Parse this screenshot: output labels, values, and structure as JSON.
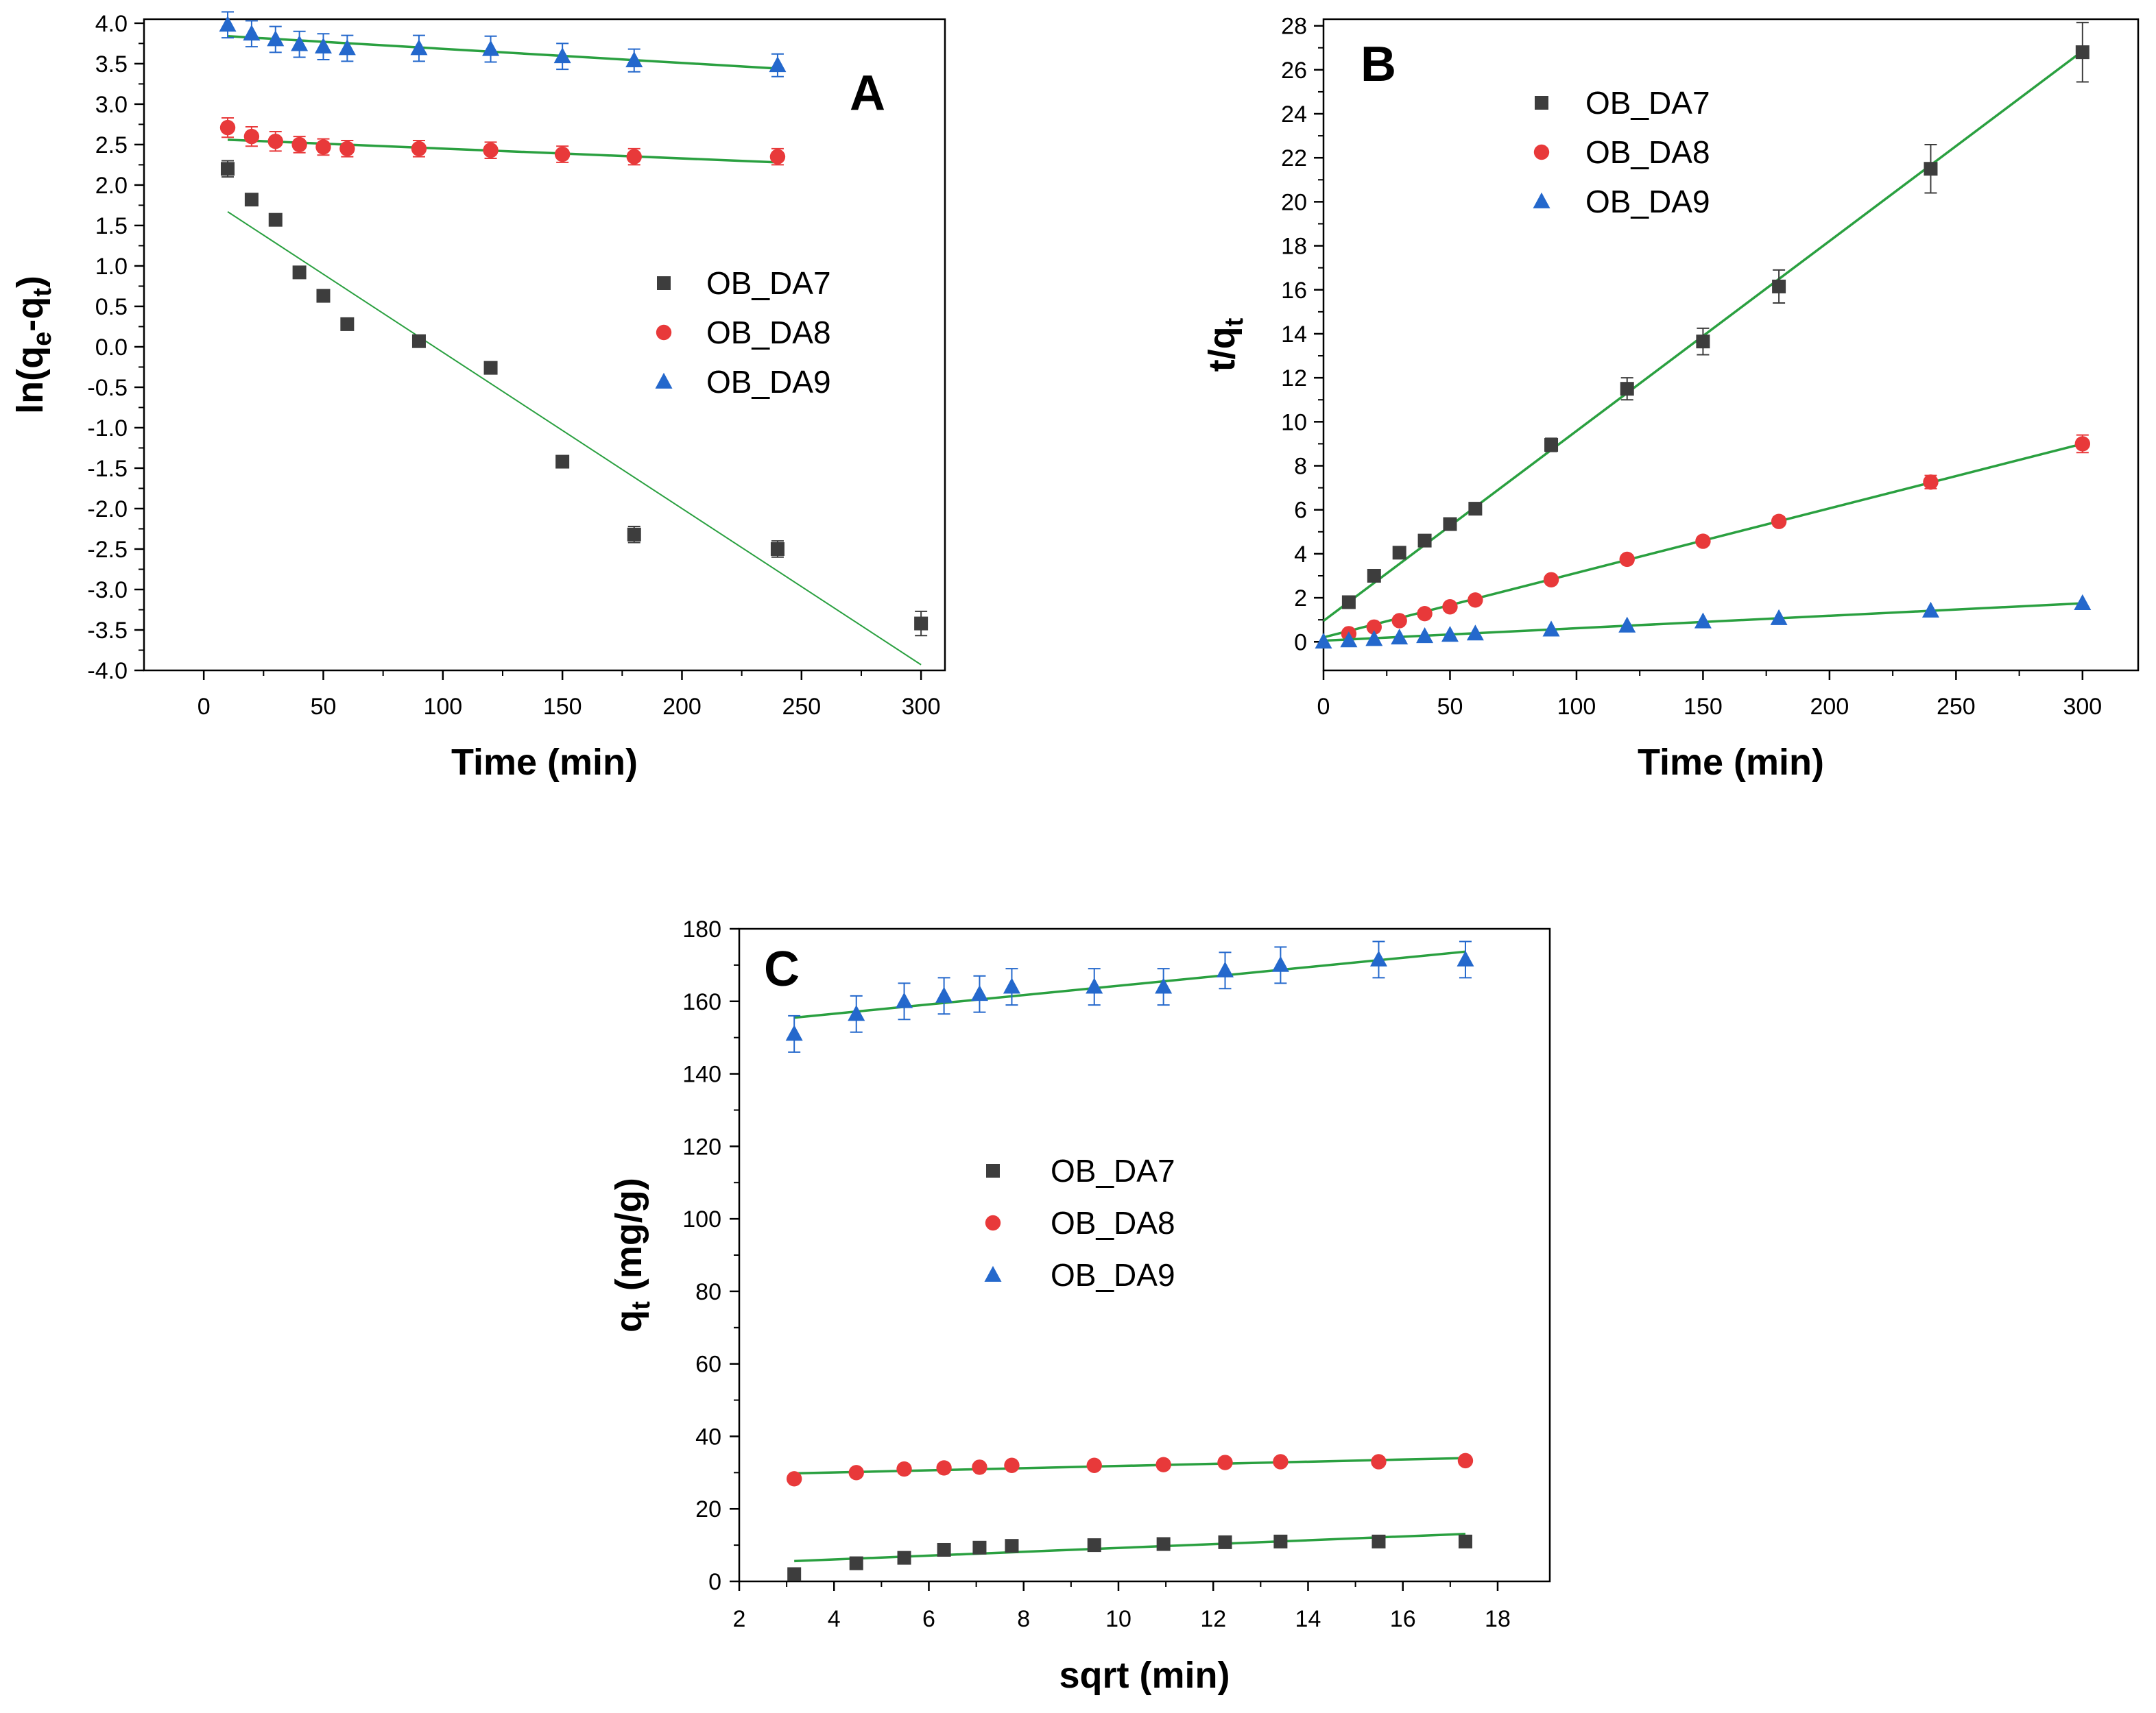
{
  "figure": {
    "colors": {
      "OB_DA7": "#3d3d3d",
      "OB_DA8": "#e8393a",
      "OB_DA9": "#2468cc",
      "fit_line": "#2aa040",
      "axis": "#000000"
    }
  },
  "chart_data": [
    {
      "type": "scatter",
      "panel": "A",
      "title": "A",
      "xlabel": "Time (min)",
      "ylabel": {
        "base": "ln(q",
        "sub1": "e",
        "mid": "-q",
        "sub2": "t",
        "end": ")"
      },
      "xlim": [
        -25,
        310
      ],
      "ylim": [
        -4.0,
        4.05
      ],
      "xticks": [
        0,
        50,
        100,
        150,
        200,
        250,
        300
      ],
      "xtick_labels": [
        "0",
        "50",
        "100",
        "150",
        "200",
        "250",
        "300"
      ],
      "yticks": [
        4.0,
        3.5,
        3.0,
        2.5,
        2.0,
        1.5,
        1.0,
        0.5,
        0.0,
        -0.5,
        -1.0,
        -1.5,
        -2.0,
        -2.5,
        -3.0,
        -3.5,
        -4.0
      ],
      "ytick_labels": [
        "4.0",
        "3.5",
        "3.0",
        "2.5",
        "2.0",
        "1.5",
        "1.0",
        "0.5",
        "0.0",
        "-0.5",
        "-1.0",
        "-1.5",
        "-2.0",
        "-2.5",
        "-3.0",
        "-3.5",
        "-4.0"
      ],
      "legend_position": "center-right",
      "series": [
        {
          "name": "OB_DA7",
          "marker": "square",
          "x": [
            10,
            20,
            30,
            40,
            50,
            60,
            90,
            120,
            150,
            180,
            240,
            300
          ],
          "y": [
            2.2,
            1.82,
            1.57,
            0.92,
            0.63,
            0.28,
            0.07,
            -0.26,
            -1.42,
            -2.32,
            -2.5,
            -3.42
          ],
          "err": [
            0.1,
            0,
            0,
            0,
            0,
            0,
            0,
            0,
            0,
            0.1,
            0.1,
            0.15
          ],
          "fit": {
            "x": [
              10,
              300
            ],
            "y": [
              1.67,
              -3.93
            ]
          }
        },
        {
          "name": "OB_DA8",
          "marker": "circle",
          "x": [
            10,
            20,
            30,
            40,
            50,
            60,
            90,
            120,
            150,
            180,
            240
          ],
          "y": [
            2.71,
            2.6,
            2.54,
            2.5,
            2.47,
            2.45,
            2.45,
            2.43,
            2.38,
            2.35,
            2.35
          ],
          "err": [
            0.12,
            0.12,
            0.12,
            0.1,
            0.1,
            0.1,
            0.1,
            0.1,
            0.1,
            0.1,
            0.1
          ],
          "fit": {
            "x": [
              10,
              240
            ],
            "y": [
              2.56,
              2.28
            ]
          }
        },
        {
          "name": "OB_DA9",
          "marker": "triangle",
          "x": [
            10,
            20,
            30,
            40,
            50,
            60,
            90,
            120,
            150,
            180,
            240
          ],
          "y": [
            3.98,
            3.87,
            3.8,
            3.74,
            3.71,
            3.69,
            3.69,
            3.68,
            3.59,
            3.54,
            3.48
          ],
          "err": [
            0.16,
            0.16,
            0.16,
            0.16,
            0.16,
            0.16,
            0.16,
            0.16,
            0.16,
            0.14,
            0.14
          ],
          "fit": {
            "x": [
              10,
              240
            ],
            "y": [
              3.84,
              3.44
            ]
          }
        }
      ]
    },
    {
      "type": "scatter",
      "panel": "B",
      "title": "B",
      "xlabel": "Time (min)",
      "ylabel": {
        "base": "t/q",
        "sub1": "t",
        "mid": "",
        "sub2": "",
        "end": ""
      },
      "xlim": [
        0,
        322
      ],
      "ylim": [
        -1.3,
        28.3
      ],
      "xticks": [
        0,
        50,
        100,
        150,
        200,
        250,
        300
      ],
      "xtick_labels": [
        "0",
        "50",
        "100",
        "150",
        "200",
        "250",
        "300"
      ],
      "yticks": [
        0,
        2,
        4,
        6,
        8,
        10,
        12,
        14,
        16,
        18,
        20,
        22,
        24,
        26,
        28
      ],
      "ytick_labels": [
        "0",
        "2",
        "4",
        "6",
        "8",
        "10",
        "12",
        "14",
        "16",
        "18",
        "20",
        "22",
        "24",
        "26",
        "28"
      ],
      "legend_position": "top-left",
      "series": [
        {
          "name": "OB_DA7",
          "marker": "square",
          "x": [
            10,
            20,
            30,
            40,
            50,
            60,
            90,
            120,
            150,
            180,
            240,
            300
          ],
          "y": [
            1.8,
            3.0,
            4.05,
            4.6,
            5.35,
            6.05,
            8.95,
            11.5,
            13.65,
            16.15,
            21.5,
            26.8
          ],
          "err": [
            0,
            0,
            0,
            0,
            0,
            0,
            0.3,
            0.5,
            0.6,
            0.75,
            1.1,
            1.35
          ],
          "fit": {
            "x": [
              0,
              300
            ],
            "y": [
              0.95,
              26.85
            ]
          }
        },
        {
          "name": "OB_DA8",
          "marker": "circle",
          "x": [
            10,
            20,
            30,
            40,
            50,
            60,
            90,
            120,
            150,
            180,
            240,
            300
          ],
          "y": [
            0.37,
            0.67,
            0.96,
            1.28,
            1.59,
            1.9,
            2.82,
            3.75,
            4.57,
            5.47,
            7.26,
            9.0
          ],
          "err": [
            0,
            0,
            0,
            0,
            0,
            0,
            0.15,
            0.15,
            0.15,
            0.2,
            0.3,
            0.4
          ],
          "fit": {
            "x": [
              0,
              300
            ],
            "y": [
              0.2,
              9.0
            ]
          }
        },
        {
          "name": "OB_DA9",
          "marker": "triangle",
          "x": [
            0,
            10,
            20,
            30,
            40,
            50,
            60,
            90,
            120,
            150,
            180,
            240,
            300
          ],
          "y": [
            0.0,
            0.06,
            0.12,
            0.19,
            0.25,
            0.31,
            0.37,
            0.55,
            0.73,
            0.92,
            1.07,
            1.41,
            1.75
          ],
          "err": [
            0,
            0,
            0,
            0,
            0,
            0,
            0,
            0,
            0,
            0,
            0,
            0,
            0
          ],
          "fit": {
            "x": [
              0,
              300
            ],
            "y": [
              0.05,
              1.75
            ]
          }
        }
      ]
    },
    {
      "type": "scatter",
      "panel": "C",
      "title": "C",
      "xlabel": "sqrt (min)",
      "ylabel": {
        "base": "q",
        "sub1": "t",
        "mid": " (mg/g)",
        "sub2": "",
        "end": ""
      },
      "xlim": [
        2,
        19.1
      ],
      "ylim": [
        0,
        180
      ],
      "xticks": [
        2,
        4,
        6,
        8,
        10,
        12,
        14,
        16,
        18
      ],
      "xtick_labels": [
        "2",
        "4",
        "6",
        "8",
        "10",
        "12",
        "14",
        "16",
        "18"
      ],
      "yticks": [
        0,
        20,
        40,
        60,
        80,
        100,
        120,
        140,
        160,
        180
      ],
      "ytick_labels": [
        "0",
        "20",
        "40",
        "60",
        "80",
        "100",
        "120",
        "140",
        "160",
        "180"
      ],
      "legend_position": "center",
      "series": [
        {
          "name": "OB_DA7",
          "marker": "square",
          "x": [
            3.16,
            4.47,
            5.48,
            6.32,
            7.07,
            7.75,
            9.49,
            10.95,
            12.25,
            13.42,
            15.49,
            17.32
          ],
          "y": [
            2,
            5,
            6.5,
            8.7,
            9.3,
            9.8,
            10,
            10.3,
            10.8,
            11,
            11,
            11
          ],
          "err": [
            0,
            0,
            0,
            0,
            0,
            0,
            0,
            0,
            0,
            0,
            0,
            0
          ],
          "fit": {
            "x": [
              3.16,
              17.32
            ],
            "y": [
              5.6,
              13.1
            ]
          }
        },
        {
          "name": "OB_DA8",
          "marker": "circle",
          "x": [
            3.16,
            4.47,
            5.48,
            6.32,
            7.07,
            7.75,
            9.49,
            10.95,
            12.25,
            13.42,
            15.49,
            17.32
          ],
          "y": [
            28.3,
            30,
            31,
            31.3,
            31.5,
            32,
            32,
            32.2,
            32.8,
            33,
            33,
            33.3
          ],
          "err": [
            0,
            0,
            0,
            0,
            0,
            0,
            0,
            0,
            0,
            0,
            0,
            0
          ],
          "fit": {
            "x": [
              3.16,
              17.32
            ],
            "y": [
              29.8,
              34.0
            ]
          }
        },
        {
          "name": "OB_DA9",
          "marker": "triangle",
          "x": [
            3.16,
            4.47,
            5.48,
            6.32,
            7.07,
            7.75,
            9.49,
            10.95,
            12.25,
            13.42,
            15.49,
            17.32
          ],
          "y": [
            151,
            156.5,
            160,
            161.5,
            162,
            164,
            164,
            164,
            168.5,
            170,
            171.5,
            171.5
          ],
          "err": [
            5,
            5,
            5,
            5,
            5,
            5,
            5,
            5,
            5,
            5,
            5,
            5
          ],
          "fit": {
            "x": [
              3.16,
              17.32
            ],
            "y": [
              155.5,
              173.7
            ]
          }
        }
      ]
    }
  ]
}
